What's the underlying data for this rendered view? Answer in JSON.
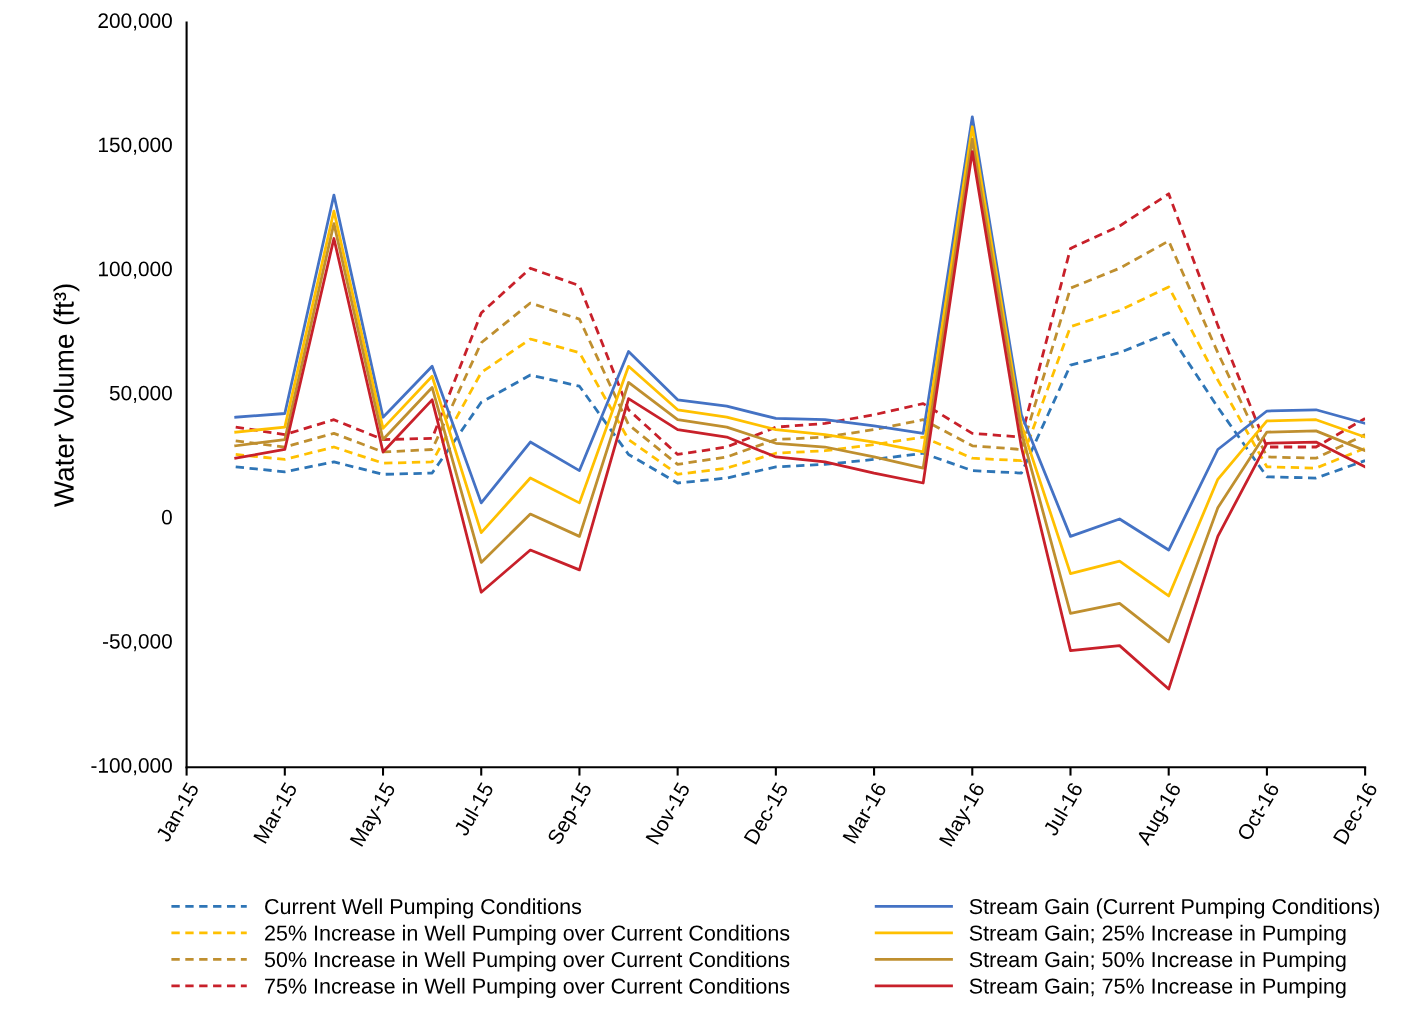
{
  "chart_data": {
    "type": "line",
    "ylabel": "Water Volume (ft³)",
    "categories": [
      "Jan-15",
      null,
      "Mar-15",
      null,
      "May-15",
      null,
      "Jul-15",
      null,
      "Sep-15",
      null,
      "Nov-15",
      null,
      "Dec-15",
      null,
      "Mar-16",
      null,
      "May-16",
      null,
      "Jul-16",
      null,
      "Aug-16",
      null,
      "Oct-16",
      null,
      "Dec-16"
    ],
    "ylim": [
      -100000,
      200000
    ],
    "yticks": [
      {
        "value": -100000,
        "label": "-100,000"
      },
      {
        "value": -50000,
        "label": "-50,000"
      },
      0,
      {
        "value": 50000,
        "label": "50,000"
      },
      {
        "value": 100000,
        "label": "100,000"
      },
      {
        "value": 150000,
        "label": "150,000"
      },
      {
        "value": 200000,
        "label": "200,000"
      }
    ],
    "grid": false,
    "legend": "bottom",
    "marker": "none",
    "series": [
      {
        "name": "Current Well Pumping Conditions",
        "color": "#2e75b6",
        "line_style": "dashed",
        "values": [
          null,
          21000,
          19000,
          23000,
          18000,
          18500,
          47000,
          58000,
          53500,
          26000,
          14500,
          16500,
          21000,
          22000,
          24000,
          26500,
          19500,
          18500,
          62000,
          67000,
          75000,
          45000,
          17000,
          16500,
          23500
        ]
      },
      {
        "name": "25% Increase in Well Pumping over Current Conditions",
        "color": "#ffc000",
        "line_style": "dashed",
        "values": [
          null,
          26000,
          24000,
          29000,
          22500,
          23000,
          59000,
          72500,
          67000,
          32000,
          18000,
          20500,
          26500,
          27500,
          30000,
          33000,
          24500,
          23500,
          77500,
          84000,
          93500,
          56000,
          21000,
          20500,
          28500
        ]
      },
      {
        "name": "50% Increase in Well Pumping over Current Conditions",
        "color": "#bf8f2f",
        "line_style": "dashed",
        "values": [
          null,
          31500,
          29000,
          34500,
          27000,
          28000,
          71000,
          87000,
          80500,
          38000,
          22000,
          25000,
          32000,
          33000,
          36000,
          40000,
          29500,
          28000,
          93000,
          101000,
          112000,
          67000,
          25000,
          24500,
          34000
        ]
      },
      {
        "name": "75% Increase in Well Pumping over Current Conditions",
        "color": "#c8202a",
        "line_style": "dashed",
        "values": [
          null,
          37000,
          34000,
          40000,
          32000,
          32500,
          83000,
          101000,
          94000,
          44000,
          26000,
          29000,
          37000,
          38500,
          42000,
          46500,
          34500,
          33000,
          109000,
          118000,
          131000,
          78000,
          29000,
          29000,
          40500
        ]
      },
      {
        "name": "Stream Gain (Current Pumping Conditions)",
        "color": "#4472c4",
        "line_style": "solid",
        "values": [
          null,
          41000,
          42500,
          130500,
          41000,
          61500,
          6500,
          31000,
          19500,
          67500,
          48000,
          45500,
          40500,
          40000,
          37500,
          34500,
          162000,
          42000,
          -7000,
          0,
          -12500,
          28000,
          43500,
          44000,
          38500
        ]
      },
      {
        "name": "Stream Gain; 25% Increase in Pumping",
        "color": "#ffc000",
        "line_style": "solid",
        "values": [
          null,
          35000,
          37000,
          124000,
          36500,
          57500,
          -5500,
          16500,
          6500,
          61500,
          44000,
          41000,
          36000,
          34000,
          31000,
          27000,
          158000,
          38000,
          -22000,
          -17000,
          -31000,
          16000,
          39500,
          40000,
          33000
        ]
      },
      {
        "name": "Stream Gain; 50% Increase in Pumping",
        "color": "#bf8f2f",
        "line_style": "solid",
        "values": [
          null,
          29500,
          32000,
          119000,
          32000,
          53000,
          -17500,
          2000,
          -7000,
          55000,
          40000,
          37000,
          30500,
          29000,
          25000,
          20500,
          153000,
          35000,
          -38000,
          -34000,
          -49500,
          4500,
          35000,
          35500,
          27500
        ]
      },
      {
        "name": "Stream Gain; 75% Increase in Pumping",
        "color": "#c8202a",
        "line_style": "solid",
        "values": [
          null,
          24500,
          28000,
          113000,
          27000,
          48000,
          -29500,
          -12500,
          -20500,
          48500,
          36000,
          33000,
          25000,
          23000,
          18500,
          14500,
          148000,
          29000,
          -53000,
          -51000,
          -68500,
          -7000,
          30500,
          31000,
          21000
        ]
      }
    ]
  }
}
